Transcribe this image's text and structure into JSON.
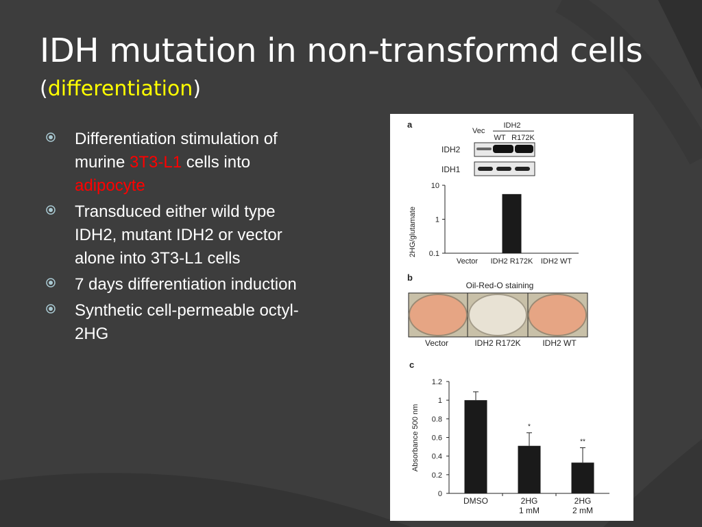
{
  "slide": {
    "title": "IDH mutation in non-transformd cells",
    "subtitle_open": "(",
    "subtitle_highlight": "differentiation",
    "subtitle_close": ")",
    "bullets": [
      {
        "parts": [
          "Differentiation stimulation of murine ",
          "3T3-L1",
          " cells into ",
          "adipocyte"
        ]
      },
      {
        "text": "Transduced either wild type IDH2, mutant IDH2 or vector alone into 3T3-L1 cells"
      },
      {
        "text": "7 days differentiation induction"
      },
      {
        "text": "Synthetic cell-permeable octyl-2HG"
      }
    ],
    "colors": {
      "background": "#3c3c3c",
      "title": "#ffffff",
      "highlight": "#ffff00",
      "emphasis": "#ff0000",
      "bullet_marker": "#a9c9d2"
    }
  },
  "figure": {
    "panel_a": {
      "label": "a",
      "blot_header": {
        "vec": "Vec",
        "group": "IDH2",
        "wt": "WT",
        "mut": "R172K"
      },
      "blot_rows": [
        "IDH2",
        "IDH1"
      ],
      "chart_data": {
        "type": "bar",
        "ylabel": "2HG/glutamate",
        "yscale": "log",
        "ylim": [
          0.1,
          10
        ],
        "yticks": [
          "10",
          "1",
          "0.1"
        ],
        "categories": [
          "Vector",
          "IDH2 R172K",
          "IDH2 WT"
        ],
        "values": [
          0.1,
          5.5,
          0.1
        ]
      }
    },
    "panel_b": {
      "label": "b",
      "title": "Oil-Red-O staining",
      "wells": [
        "Vector",
        "IDH2 R172K",
        "IDH2 WT"
      ]
    },
    "panel_c": {
      "label": "c",
      "chart_data": {
        "type": "bar",
        "ylabel": "Absorbance 500 nm",
        "ylim": [
          0,
          1.2
        ],
        "yticks": [
          "1.2",
          "1",
          "0.8",
          "0.6",
          "0.4",
          "0.2",
          "0"
        ],
        "categories": [
          [
            "DMSO"
          ],
          [
            "2HG",
            "1 mM"
          ],
          [
            "2HG",
            "2 mM"
          ]
        ],
        "values": [
          1.0,
          0.51,
          0.33
        ],
        "errors": [
          0.09,
          0.14,
          0.16
        ],
        "annotations": [
          "",
          "*",
          "**"
        ]
      }
    }
  }
}
